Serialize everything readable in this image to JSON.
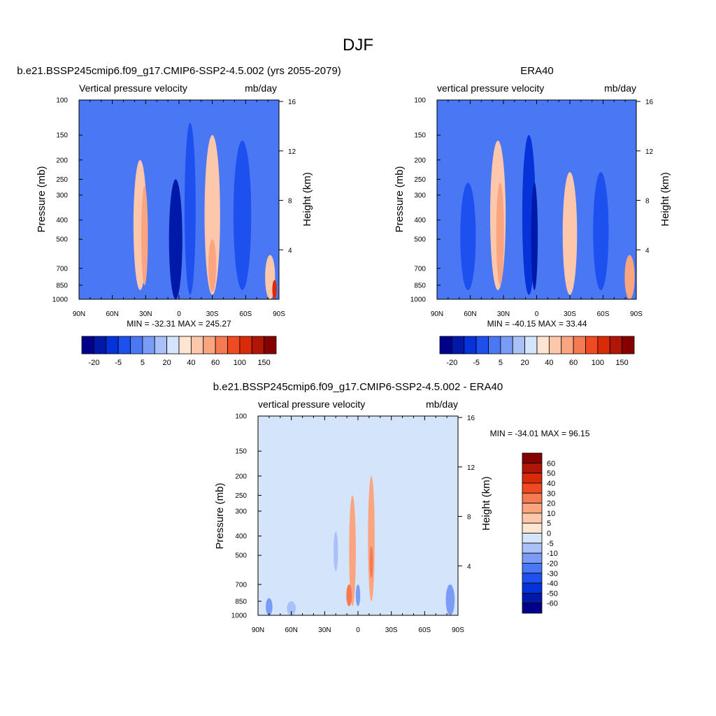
{
  "figure_title": "DJF",
  "chart_data": [
    {
      "type": "heatmap",
      "id": "model",
      "title": "b.e21.BSSP245cmip6.f09_g17.CMIP6-SSP2-4.5.002 (yrs 2055-2079)",
      "left_label": "Vertical pressure velocity",
      "right_label": "mb/day",
      "ylabel": "Pressure (mb)",
      "y2label": "Height (km)",
      "x_ticks": [
        "90N",
        "60N",
        "30N",
        "0",
        "30S",
        "60S",
        "90S"
      ],
      "y_ticks": [
        "100",
        "150",
        "200",
        "250",
        "300",
        "400",
        "500",
        "700",
        "850",
        "1000"
      ],
      "height_ticks": [
        "16",
        "12",
        "8",
        "4"
      ],
      "stats": "MIN = -32.31  MAX = 245.27",
      "colorbar_labels": [
        "-20",
        "-5",
        "5",
        "20",
        "40",
        "60",
        "100",
        "150"
      ],
      "features": [
        {
          "lat": 60,
          "bottom": 850,
          "top": 260,
          "width": 16,
          "value": -9
        },
        {
          "lat": 35,
          "bottom": 900,
          "top": 200,
          "width": 12,
          "value": 5
        },
        {
          "lat": 31,
          "bottom": 850,
          "top": 270,
          "width": 6,
          "value": 12
        },
        {
          "lat": 3,
          "bottom": 1000,
          "top": 250,
          "width": 12,
          "value": -40
        },
        {
          "lat": -10,
          "bottom": 950,
          "top": 130,
          "width": 10,
          "value": -20
        },
        {
          "lat": -30,
          "bottom": 950,
          "top": 150,
          "width": 14,
          "value": 5
        },
        {
          "lat": -30,
          "bottom": 920,
          "top": 500,
          "width": 7,
          "value": 12
        },
        {
          "lat": -57,
          "bottom": 900,
          "top": 160,
          "width": 16,
          "value": -15
        },
        {
          "lat": -82,
          "bottom": 1000,
          "top": 600,
          "width": 9,
          "value": 5
        },
        {
          "lat": -86,
          "bottom": 1000,
          "top": 800,
          "width": 4,
          "value": 45
        }
      ]
    },
    {
      "type": "heatmap",
      "id": "obs",
      "title": "ERA40",
      "left_label": "vertical pressure velocity",
      "right_label": "mb/day",
      "ylabel": "Pressure (mb)",
      "y2label": "Height (km)",
      "x_ticks": [
        "90N",
        "60N",
        "30N",
        "0",
        "30S",
        "60S",
        "90S"
      ],
      "y_ticks": [
        "100",
        "150",
        "200",
        "250",
        "300",
        "400",
        "500",
        "700",
        "850",
        "1000"
      ],
      "height_ticks": [
        "16",
        "12",
        "8",
        "4"
      ],
      "stats": "MIN = -40.15  MAX =  33.44",
      "colorbar_labels": [
        "-20",
        "-5",
        "5",
        "20",
        "40",
        "60",
        "100",
        "150"
      ],
      "features": [
        {
          "lat": 62,
          "bottom": 900,
          "top": 260,
          "width": 14,
          "value": -12
        },
        {
          "lat": 35,
          "bottom": 900,
          "top": 160,
          "width": 14,
          "value": 5
        },
        {
          "lat": 33,
          "bottom": 850,
          "top": 260,
          "width": 7,
          "value": 12
        },
        {
          "lat": 7,
          "bottom": 950,
          "top": 150,
          "width": 12,
          "value": -25
        },
        {
          "lat": 2,
          "bottom": 900,
          "top": 260,
          "width": 6,
          "value": -40
        },
        {
          "lat": -30,
          "bottom": 950,
          "top": 230,
          "width": 13,
          "value": 5
        },
        {
          "lat": -58,
          "bottom": 900,
          "top": 230,
          "width": 14,
          "value": -14
        },
        {
          "lat": -84,
          "bottom": 1000,
          "top": 600,
          "width": 9,
          "value": 12
        }
      ]
    },
    {
      "type": "heatmap",
      "id": "diff",
      "title": "b.e21.BSSP245cmip6.f09_g17.CMIP6-SSP2-4.5.002 - ERA40",
      "left_label": "vertical pressure velocity",
      "right_label": "mb/day",
      "ylabel": "Pressure (mb)",
      "y2label": "Height (km)",
      "x_ticks": [
        "90N",
        "60N",
        "30N",
        "0",
        "30S",
        "60S",
        "90S"
      ],
      "y_ticks": [
        "100",
        "150",
        "200",
        "250",
        "300",
        "400",
        "500",
        "700",
        "850",
        "1000"
      ],
      "height_ticks": [
        "16",
        "12",
        "8",
        "4"
      ],
      "stats": "MIN = -34.01  MAX =  96.15",
      "colorbar_labels": [
        "60",
        "50",
        "40",
        "30",
        "20",
        "10",
        "5",
        "0",
        "-5",
        "-10",
        "-20",
        "-30",
        "-40",
        "-50",
        "-60"
      ],
      "features": [
        {
          "lat": 5,
          "bottom": 900,
          "top": 250,
          "width": 6,
          "value": 12
        },
        {
          "lat": -12,
          "bottom": 850,
          "top": 200,
          "width": 6,
          "value": 12
        },
        {
          "lat": 8,
          "bottom": 900,
          "top": 700,
          "width": 5,
          "value": 25
        },
        {
          "lat": -12,
          "bottom": 650,
          "top": 450,
          "width": 3,
          "value": 25
        },
        {
          "lat": 0,
          "bottom": 900,
          "top": 700,
          "width": 4,
          "value": -12
        },
        {
          "lat": 20,
          "bottom": 600,
          "top": 380,
          "width": 4,
          "value": -7
        },
        {
          "lat": -83,
          "bottom": 1000,
          "top": 700,
          "width": 8,
          "value": -15
        },
        {
          "lat": 80,
          "bottom": 1000,
          "top": 820,
          "width": 6,
          "value": -12
        },
        {
          "lat": 60,
          "bottom": 1000,
          "top": 850,
          "width": 8,
          "value": -8
        }
      ]
    }
  ]
}
